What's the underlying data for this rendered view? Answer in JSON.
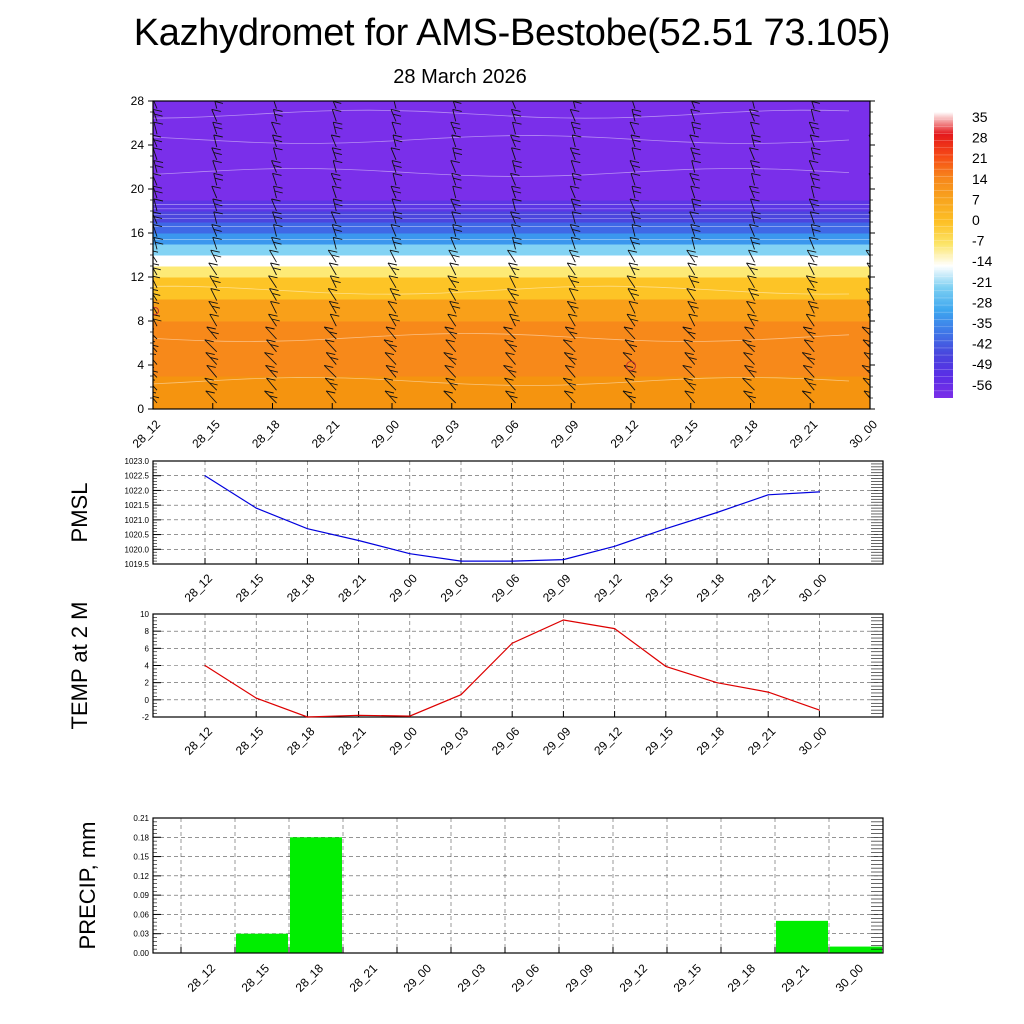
{
  "title": "Kazhydromet for AMS-Bestobe(52.51 73.105)",
  "subtitle": "28 March 2026",
  "time_labels": [
    "28_12",
    "28_15",
    "28_18",
    "28_21",
    "29_00",
    "29_03",
    "29_06",
    "29_09",
    "29_12",
    "29_15",
    "29_18",
    "29_21",
    "30_00"
  ],
  "chart_data": [
    {
      "type": "heatmap",
      "name": "cross-section",
      "title": "",
      "xlabel": "",
      "ylabel": "",
      "y_ticks": [
        0,
        4,
        8,
        12,
        16,
        20,
        24,
        28
      ],
      "ylim": [
        0,
        28
      ],
      "colorbar": {
        "labels": [
          "35",
          "28",
          "21",
          "14",
          "7",
          "0",
          "-7",
          "-14",
          "-21",
          "-28",
          "-35",
          "-42",
          "-49",
          "-56"
        ],
        "colors": [
          "#ffffff",
          "#e4181c",
          "#f64a16",
          "#f7871c",
          "#f8a51e",
          "#fdc026",
          "#fce569",
          "#ffffff",
          "#7ccff2",
          "#3ea7ef",
          "#3f78e8",
          "#4846dd",
          "#5a2ee6",
          "#7b2ee8"
        ]
      },
      "layers": [
        {
          "range": [
            0,
            3
          ],
          "color": "#f5940f"
        },
        {
          "range": [
            3,
            8
          ],
          "color": "#f7891a"
        },
        {
          "range": [
            8,
            10
          ],
          "color": "#f9a019"
        },
        {
          "range": [
            10,
            12
          ],
          "color": "#fdc426"
        },
        {
          "range": [
            12,
            13
          ],
          "color": "#fdea76"
        },
        {
          "range": [
            13,
            14
          ],
          "color": "#ffffff"
        },
        {
          "range": [
            14,
            15
          ],
          "color": "#83d3f4"
        },
        {
          "range": [
            15,
            16
          ],
          "color": "#3b97ee"
        },
        {
          "range": [
            16,
            17
          ],
          "color": "#3f68e6"
        },
        {
          "range": [
            17,
            18
          ],
          "color": "#4c45de"
        },
        {
          "range": [
            18,
            19
          ],
          "color": "#5c36e5"
        },
        {
          "range": [
            19,
            28
          ],
          "color": "#7a2fea"
        }
      ]
    },
    {
      "type": "line",
      "name": "PMSL",
      "ylabel": "PMSL",
      "x": [
        "28_12",
        "28_15",
        "28_18",
        "28_21",
        "29_00",
        "29_03",
        "29_06",
        "29_09",
        "29_12",
        "29_15",
        "29_18",
        "29_21",
        "30_00"
      ],
      "series": [
        {
          "name": "PMSL",
          "color": "#0000dd",
          "values": [
            1022.5,
            1021.4,
            1020.7,
            1020.3,
            1019.85,
            1019.6,
            1019.6,
            1019.65,
            1020.1,
            1020.7,
            1021.25,
            1021.85,
            1021.95
          ]
        }
      ],
      "ylim": [
        1019.5,
        1023.0
      ],
      "y_ticks": [
        "1019.5",
        "1020.0",
        "1020.5",
        "1021.0",
        "1021.5",
        "1022.0",
        "1022.5",
        "1023.0"
      ]
    },
    {
      "type": "line",
      "name": "TEMP",
      "ylabel": "TEMP at 2 M",
      "x": [
        "28_12",
        "28_15",
        "28_18",
        "28_21",
        "29_00",
        "29_03",
        "29_06",
        "29_09",
        "29_12",
        "29_15",
        "29_18",
        "29_21",
        "30_00"
      ],
      "series": [
        {
          "name": "TEMP at 2 M",
          "color": "#dd0000",
          "values": [
            4.0,
            0.2,
            -2.0,
            -1.8,
            -1.9,
            0.6,
            6.6,
            9.3,
            8.3,
            3.9,
            2.0,
            0.9,
            -1.2
          ]
        }
      ],
      "ylim": [
        -2,
        10
      ],
      "y_ticks": [
        "-2",
        "0",
        "2",
        "4",
        "6",
        "8",
        "10"
      ]
    },
    {
      "type": "bar",
      "name": "PRECIP",
      "ylabel": "PRECIP, mm",
      "categories": [
        "28_12",
        "28_15",
        "28_18",
        "28_21",
        "29_00",
        "29_03",
        "29_06",
        "29_09",
        "29_12",
        "29_15",
        "29_18",
        "29_21",
        "30_00"
      ],
      "values": [
        0,
        0.03,
        0.18,
        0,
        0,
        0,
        0,
        0,
        0,
        0,
        0,
        0.05,
        0.01
      ],
      "bar_color": "#00ee00",
      "ylim": [
        0,
        0.21
      ],
      "y_ticks": [
        "0.00",
        "0.03",
        "0.06",
        "0.09",
        "0.12",
        "0.15",
        "0.18",
        "0.21"
      ]
    }
  ]
}
